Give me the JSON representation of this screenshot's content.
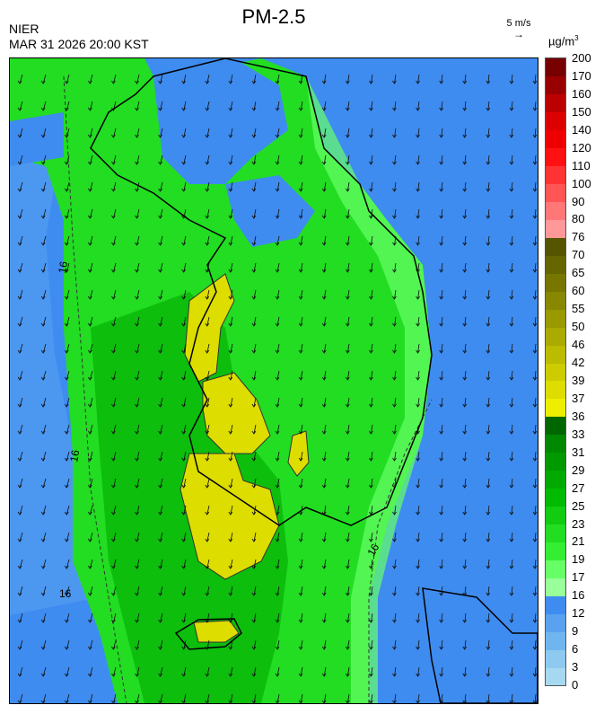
{
  "header": {
    "org": "NIER",
    "timestamp": "MAR 31 2026 20:00 KST",
    "title": "PM-2.5",
    "wind_scale": "5 m/s",
    "unit": "µg/m",
    "unit_exp": "3"
  },
  "map": {
    "contour_labels": [
      "16",
      "16",
      "16",
      "16"
    ],
    "icons": [
      "wind-vector-arrows",
      "coastline",
      "admin-boundaries"
    ]
  },
  "legend": {
    "labels": [
      "0",
      "3",
      "6",
      "9",
      "12",
      "16",
      "17",
      "19",
      "21",
      "23",
      "25",
      "27",
      "29",
      "31",
      "33",
      "36",
      "37",
      "39",
      "42",
      "46",
      "50",
      "55",
      "60",
      "65",
      "70",
      "76",
      "80",
      "90",
      "100",
      "110",
      "120",
      "140",
      "150",
      "160",
      "170",
      "200"
    ],
    "colors": [
      "#a6d8f0",
      "#8ecaf0",
      "#6fb6f0",
      "#5aa2f0",
      "#3f8cf0",
      "#99ff99",
      "#66ff66",
      "#33ee33",
      "#22dd22",
      "#11cc11",
      "#00bb00",
      "#00aa00",
      "#009900",
      "#008800",
      "#006600",
      "#eeee00",
      "#dddd00",
      "#cccc00",
      "#bbbb00",
      "#aaaa00",
      "#999900",
      "#888800",
      "#777700",
      "#666600",
      "#555500",
      "#ff9999",
      "#ff7777",
      "#ff5555",
      "#ff3333",
      "#ff1111",
      "#ee0000",
      "#dd0000",
      "#bb0000",
      "#990000",
      "#770000"
    ]
  }
}
